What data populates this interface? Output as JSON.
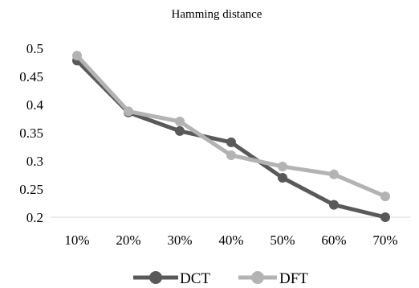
{
  "chart_data": {
    "type": "line",
    "title": "Hamming distance",
    "xlabel": "",
    "ylabel": "",
    "categories": [
      "10%",
      "20%",
      "30%",
      "40%",
      "50%",
      "60%",
      "70%"
    ],
    "ylim": [
      0.2,
      0.5
    ],
    "yticks": [
      "0.2",
      "0.25",
      "0.3",
      "0.35",
      "0.4",
      "0.45",
      "0.5"
    ],
    "yticks_values": [
      0.2,
      0.25,
      0.3,
      0.35,
      0.4,
      0.45,
      0.5
    ],
    "grid": false,
    "legend_position": "bottom",
    "series": [
      {
        "name": "DCT",
        "color": "#595959",
        "values": [
          0.478,
          0.386,
          0.353,
          0.333,
          0.27,
          0.222,
          0.2
        ]
      },
      {
        "name": "DFT",
        "color": "#b3b3b3",
        "values": [
          0.487,
          0.388,
          0.37,
          0.31,
          0.29,
          0.276,
          0.237
        ]
      }
    ]
  }
}
